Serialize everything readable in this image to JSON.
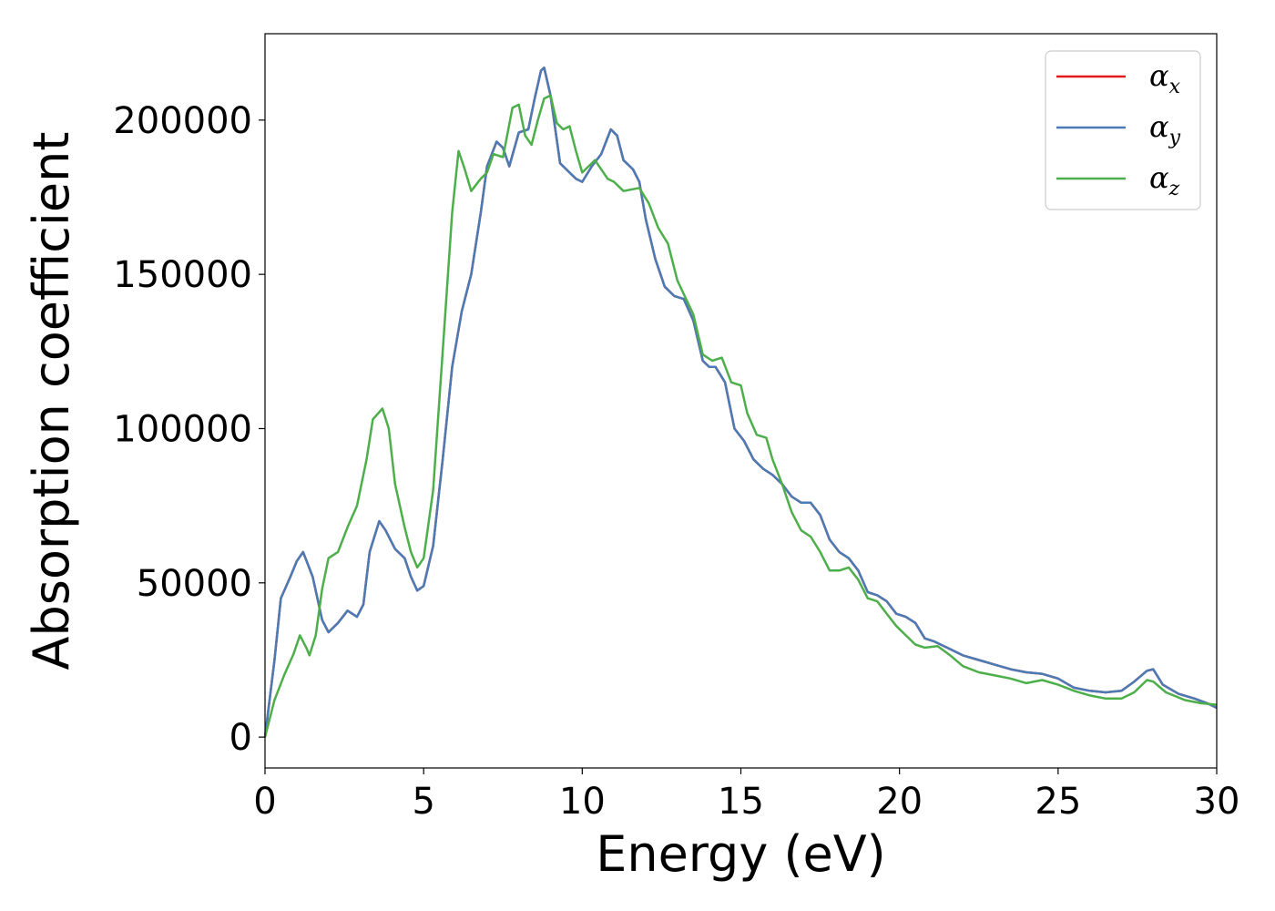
{
  "chart_data": {
    "type": "line",
    "xlabel": "Energy (eV)",
    "ylabel": "Absorption coefficient",
    "xlim": [
      0,
      30
    ],
    "ylim": [
      -10000,
      228000
    ],
    "xticks": [
      0,
      5,
      10,
      15,
      20,
      25,
      30
    ],
    "xtick_labels": [
      "0",
      "5",
      "10",
      "15",
      "20",
      "25",
      "30"
    ],
    "yticks": [
      0,
      50000,
      100000,
      150000,
      200000
    ],
    "ytick_labels": [
      "0",
      "50000",
      "100000",
      "150000",
      "200000"
    ],
    "grid": false,
    "legend_position": "top-right",
    "series": [
      {
        "name": "αx",
        "label_base": "α",
        "label_sub": "x",
        "color": "#e41a1c",
        "points": [
          [
            0,
            0
          ],
          [
            0.3,
            25000
          ],
          [
            0.5,
            45000
          ],
          [
            0.8,
            52000
          ],
          [
            1.0,
            57000
          ],
          [
            1.2,
            60000
          ],
          [
            1.5,
            52000
          ],
          [
            1.8,
            38000
          ],
          [
            2.0,
            34000
          ],
          [
            2.3,
            37000
          ],
          [
            2.6,
            41000
          ],
          [
            2.9,
            39000
          ],
          [
            3.1,
            43000
          ],
          [
            3.3,
            60000
          ],
          [
            3.6,
            70000
          ],
          [
            3.8,
            67000
          ],
          [
            4.1,
            61000
          ],
          [
            4.4,
            58000
          ],
          [
            4.6,
            52000
          ],
          [
            4.8,
            47500
          ],
          [
            5.0,
            49000
          ],
          [
            5.3,
            62000
          ],
          [
            5.6,
            90000
          ],
          [
            5.9,
            120000
          ],
          [
            6.2,
            138000
          ],
          [
            6.5,
            150000
          ],
          [
            6.8,
            170000
          ],
          [
            7.0,
            185000
          ],
          [
            7.3,
            193000
          ],
          [
            7.5,
            191000
          ],
          [
            7.7,
            185000
          ],
          [
            8.0,
            196000
          ],
          [
            8.3,
            197000
          ],
          [
            8.5,
            207000
          ],
          [
            8.7,
            216000
          ],
          [
            8.8,
            217000
          ],
          [
            9.0,
            208000
          ],
          [
            9.3,
            186000
          ],
          [
            9.5,
            184000
          ],
          [
            9.8,
            181000
          ],
          [
            10.0,
            180000
          ],
          [
            10.3,
            185000
          ],
          [
            10.6,
            189000
          ],
          [
            10.9,
            197000
          ],
          [
            11.1,
            195000
          ],
          [
            11.3,
            187000
          ],
          [
            11.6,
            184000
          ],
          [
            11.8,
            180000
          ],
          [
            12.0,
            168000
          ],
          [
            12.3,
            155000
          ],
          [
            12.6,
            146000
          ],
          [
            12.9,
            143000
          ],
          [
            13.2,
            142000
          ],
          [
            13.5,
            135000
          ],
          [
            13.8,
            122000
          ],
          [
            14.0,
            120000
          ],
          [
            14.2,
            120000
          ],
          [
            14.5,
            115000
          ],
          [
            14.8,
            100000
          ],
          [
            15.1,
            96000
          ],
          [
            15.4,
            90000
          ],
          [
            15.7,
            87000
          ],
          [
            16.0,
            85000
          ],
          [
            16.3,
            82000
          ],
          [
            16.6,
            78000
          ],
          [
            16.9,
            76000
          ],
          [
            17.2,
            76000
          ],
          [
            17.5,
            72000
          ],
          [
            17.8,
            64000
          ],
          [
            18.1,
            60000
          ],
          [
            18.4,
            58000
          ],
          [
            18.7,
            54000
          ],
          [
            19.0,
            47000
          ],
          [
            19.3,
            46000
          ],
          [
            19.6,
            44000
          ],
          [
            19.9,
            40000
          ],
          [
            20.2,
            39000
          ],
          [
            20.5,
            37000
          ],
          [
            20.8,
            32000
          ],
          [
            21.1,
            31000
          ],
          [
            21.5,
            29000
          ],
          [
            22.0,
            26500
          ],
          [
            22.5,
            25000
          ],
          [
            23.0,
            23500
          ],
          [
            23.5,
            22000
          ],
          [
            24.0,
            21000
          ],
          [
            24.5,
            20500
          ],
          [
            25.0,
            19000
          ],
          [
            25.5,
            16000
          ],
          [
            26.0,
            15000
          ],
          [
            26.5,
            14500
          ],
          [
            27.0,
            15000
          ],
          [
            27.4,
            18000
          ],
          [
            27.8,
            21500
          ],
          [
            28.0,
            22000
          ],
          [
            28.3,
            17000
          ],
          [
            28.8,
            14000
          ],
          [
            29.3,
            12500
          ],
          [
            29.7,
            11000
          ],
          [
            30.0,
            9500
          ]
        ]
      },
      {
        "name": "αy",
        "label_base": "α",
        "label_sub": "y",
        "color": "#4a7bb5",
        "points": [
          [
            0,
            0
          ],
          [
            0.3,
            25000
          ],
          [
            0.5,
            45000
          ],
          [
            0.8,
            52000
          ],
          [
            1.0,
            57000
          ],
          [
            1.2,
            60000
          ],
          [
            1.5,
            52000
          ],
          [
            1.8,
            38000
          ],
          [
            2.0,
            34000
          ],
          [
            2.3,
            37000
          ],
          [
            2.6,
            41000
          ],
          [
            2.9,
            39000
          ],
          [
            3.1,
            43000
          ],
          [
            3.3,
            60000
          ],
          [
            3.6,
            70000
          ],
          [
            3.8,
            67000
          ],
          [
            4.1,
            61000
          ],
          [
            4.4,
            58000
          ],
          [
            4.6,
            52000
          ],
          [
            4.8,
            47500
          ],
          [
            5.0,
            49000
          ],
          [
            5.3,
            62000
          ],
          [
            5.6,
            90000
          ],
          [
            5.9,
            120000
          ],
          [
            6.2,
            138000
          ],
          [
            6.5,
            150000
          ],
          [
            6.8,
            170000
          ],
          [
            7.0,
            185000
          ],
          [
            7.3,
            193000
          ],
          [
            7.5,
            191000
          ],
          [
            7.7,
            185000
          ],
          [
            8.0,
            196000
          ],
          [
            8.3,
            197000
          ],
          [
            8.5,
            207000
          ],
          [
            8.7,
            216000
          ],
          [
            8.8,
            217000
          ],
          [
            9.0,
            208000
          ],
          [
            9.3,
            186000
          ],
          [
            9.5,
            184000
          ],
          [
            9.8,
            181000
          ],
          [
            10.0,
            180000
          ],
          [
            10.3,
            185000
          ],
          [
            10.6,
            189000
          ],
          [
            10.9,
            197000
          ],
          [
            11.1,
            195000
          ],
          [
            11.3,
            187000
          ],
          [
            11.6,
            184000
          ],
          [
            11.8,
            180000
          ],
          [
            12.0,
            168000
          ],
          [
            12.3,
            155000
          ],
          [
            12.6,
            146000
          ],
          [
            12.9,
            143000
          ],
          [
            13.2,
            142000
          ],
          [
            13.5,
            135000
          ],
          [
            13.8,
            122000
          ],
          [
            14.0,
            120000
          ],
          [
            14.2,
            120000
          ],
          [
            14.5,
            115000
          ],
          [
            14.8,
            100000
          ],
          [
            15.1,
            96000
          ],
          [
            15.4,
            90000
          ],
          [
            15.7,
            87000
          ],
          [
            16.0,
            85000
          ],
          [
            16.3,
            82000
          ],
          [
            16.6,
            78000
          ],
          [
            16.9,
            76000
          ],
          [
            17.2,
            76000
          ],
          [
            17.5,
            72000
          ],
          [
            17.8,
            64000
          ],
          [
            18.1,
            60000
          ],
          [
            18.4,
            58000
          ],
          [
            18.7,
            54000
          ],
          [
            19.0,
            47000
          ],
          [
            19.3,
            46000
          ],
          [
            19.6,
            44000
          ],
          [
            19.9,
            40000
          ],
          [
            20.2,
            39000
          ],
          [
            20.5,
            37000
          ],
          [
            20.8,
            32000
          ],
          [
            21.1,
            31000
          ],
          [
            21.5,
            29000
          ],
          [
            22.0,
            26500
          ],
          [
            22.5,
            25000
          ],
          [
            23.0,
            23500
          ],
          [
            23.5,
            22000
          ],
          [
            24.0,
            21000
          ],
          [
            24.5,
            20500
          ],
          [
            25.0,
            19000
          ],
          [
            25.5,
            16000
          ],
          [
            26.0,
            15000
          ],
          [
            26.5,
            14500
          ],
          [
            27.0,
            15000
          ],
          [
            27.4,
            18000
          ],
          [
            27.8,
            21500
          ],
          [
            28.0,
            22000
          ],
          [
            28.3,
            17000
          ],
          [
            28.8,
            14000
          ],
          [
            29.3,
            12500
          ],
          [
            29.7,
            11000
          ],
          [
            30.0,
            9500
          ]
        ]
      },
      {
        "name": "αz",
        "label_base": "α",
        "label_sub": "z",
        "color": "#4daf4a",
        "points": [
          [
            0,
            0
          ],
          [
            0.3,
            12000
          ],
          [
            0.6,
            20000
          ],
          [
            0.9,
            27000
          ],
          [
            1.1,
            33000
          ],
          [
            1.3,
            29000
          ],
          [
            1.4,
            26500
          ],
          [
            1.6,
            33000
          ],
          [
            1.8,
            48000
          ],
          [
            2.0,
            58000
          ],
          [
            2.3,
            60000
          ],
          [
            2.6,
            68000
          ],
          [
            2.9,
            75000
          ],
          [
            3.2,
            90000
          ],
          [
            3.4,
            103000
          ],
          [
            3.7,
            106500
          ],
          [
            3.9,
            100000
          ],
          [
            4.1,
            82000
          ],
          [
            4.4,
            68000
          ],
          [
            4.6,
            60000
          ],
          [
            4.8,
            55000
          ],
          [
            5.0,
            58000
          ],
          [
            5.3,
            80000
          ],
          [
            5.6,
            125000
          ],
          [
            5.9,
            170000
          ],
          [
            6.1,
            190000
          ],
          [
            6.3,
            184000
          ],
          [
            6.5,
            177000
          ],
          [
            6.8,
            181000
          ],
          [
            7.0,
            183000
          ],
          [
            7.2,
            189000
          ],
          [
            7.5,
            188000
          ],
          [
            7.8,
            204000
          ],
          [
            8.0,
            205000
          ],
          [
            8.2,
            195000
          ],
          [
            8.4,
            192000
          ],
          [
            8.6,
            200000
          ],
          [
            8.8,
            207000
          ],
          [
            9.0,
            208000
          ],
          [
            9.2,
            199000
          ],
          [
            9.4,
            197000
          ],
          [
            9.6,
            198000
          ],
          [
            9.8,
            190000
          ],
          [
            10.0,
            183000
          ],
          [
            10.4,
            187000
          ],
          [
            10.8,
            181000
          ],
          [
            11.0,
            180000
          ],
          [
            11.3,
            177000
          ],
          [
            11.8,
            178000
          ],
          [
            12.1,
            173000
          ],
          [
            12.4,
            165000
          ],
          [
            12.7,
            160000
          ],
          [
            13.0,
            148000
          ],
          [
            13.5,
            137000
          ],
          [
            13.8,
            124000
          ],
          [
            14.1,
            122000
          ],
          [
            14.4,
            123000
          ],
          [
            14.7,
            115000
          ],
          [
            15.0,
            114000
          ],
          [
            15.2,
            105000
          ],
          [
            15.5,
            98000
          ],
          [
            15.8,
            97000
          ],
          [
            16.0,
            90000
          ],
          [
            16.3,
            82000
          ],
          [
            16.6,
            73000
          ],
          [
            16.9,
            67000
          ],
          [
            17.2,
            65000
          ],
          [
            17.5,
            60000
          ],
          [
            17.8,
            54000
          ],
          [
            18.1,
            54000
          ],
          [
            18.4,
            55000
          ],
          [
            18.7,
            51000
          ],
          [
            19.0,
            45000
          ],
          [
            19.3,
            44000
          ],
          [
            19.6,
            40000
          ],
          [
            19.9,
            36000
          ],
          [
            20.2,
            33000
          ],
          [
            20.5,
            30000
          ],
          [
            20.8,
            29000
          ],
          [
            21.2,
            29500
          ],
          [
            21.6,
            26500
          ],
          [
            22.0,
            23000
          ],
          [
            22.5,
            21000
          ],
          [
            23.0,
            20000
          ],
          [
            23.5,
            19000
          ],
          [
            24.0,
            17500
          ],
          [
            24.5,
            18500
          ],
          [
            25.0,
            17000
          ],
          [
            25.5,
            15000
          ],
          [
            26.0,
            13500
          ],
          [
            26.5,
            12500
          ],
          [
            27.0,
            12500
          ],
          [
            27.4,
            14500
          ],
          [
            27.8,
            18500
          ],
          [
            28.0,
            18000
          ],
          [
            28.4,
            14500
          ],
          [
            29.0,
            12000
          ],
          [
            29.5,
            11000
          ],
          [
            30.0,
            10500
          ]
        ]
      }
    ]
  }
}
